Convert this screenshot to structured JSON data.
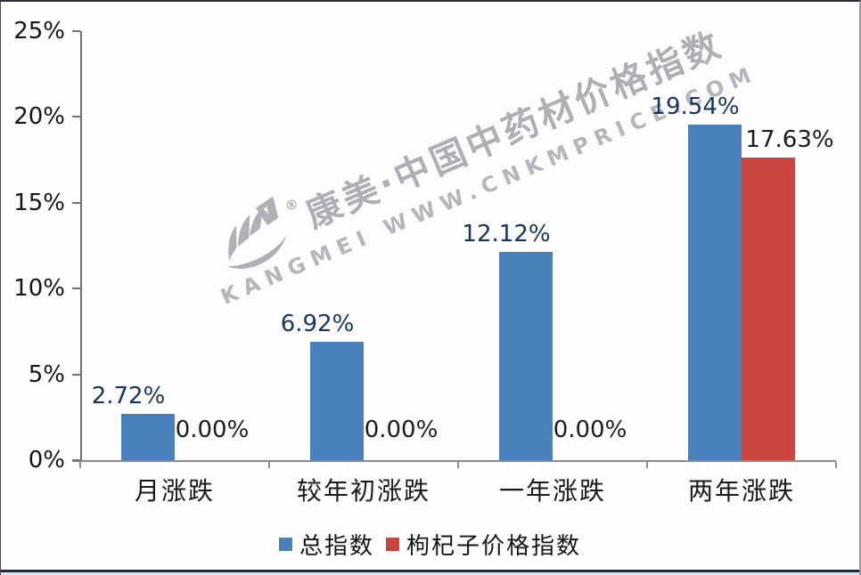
{
  "watermark": {
    "registered_mark": "®",
    "line1": "康美·中国中药材价格指数",
    "line2": "KANGMEI WWW.CNKMPRICE.COM"
  },
  "chart_data": {
    "type": "bar",
    "title": "",
    "xlabel": "",
    "ylabel": "",
    "categories": [
      "月涨跌",
      "较年初涨跌",
      "一年涨跌",
      "两年涨跌"
    ],
    "series": [
      {
        "name": "总指数",
        "color": "#4a81bd",
        "label_color": "#17365d",
        "values": [
          2.72,
          6.92,
          12.12,
          19.54
        ],
        "labels": [
          "2.72%",
          "6.92%",
          "12.12%",
          "19.54%"
        ]
      },
      {
        "name": "枸杞子价格指数",
        "color": "#cb4540",
        "label_color": "#1c1c1c",
        "values": [
          0.0,
          0.0,
          0.0,
          17.63
        ],
        "labels": [
          "0.00%",
          "0.00%",
          "0.00%",
          "17.63%"
        ]
      }
    ],
    "ylim": [
      0,
      25
    ],
    "yticks": [
      {
        "value": 0,
        "label": "0%"
      },
      {
        "value": 5,
        "label": "5%"
      },
      {
        "value": 10,
        "label": "10%"
      },
      {
        "value": 15,
        "label": "15%"
      },
      {
        "value": 20,
        "label": "20%"
      },
      {
        "value": 25,
        "label": "25%"
      }
    ],
    "grid": false,
    "legend_position": "bottom"
  }
}
